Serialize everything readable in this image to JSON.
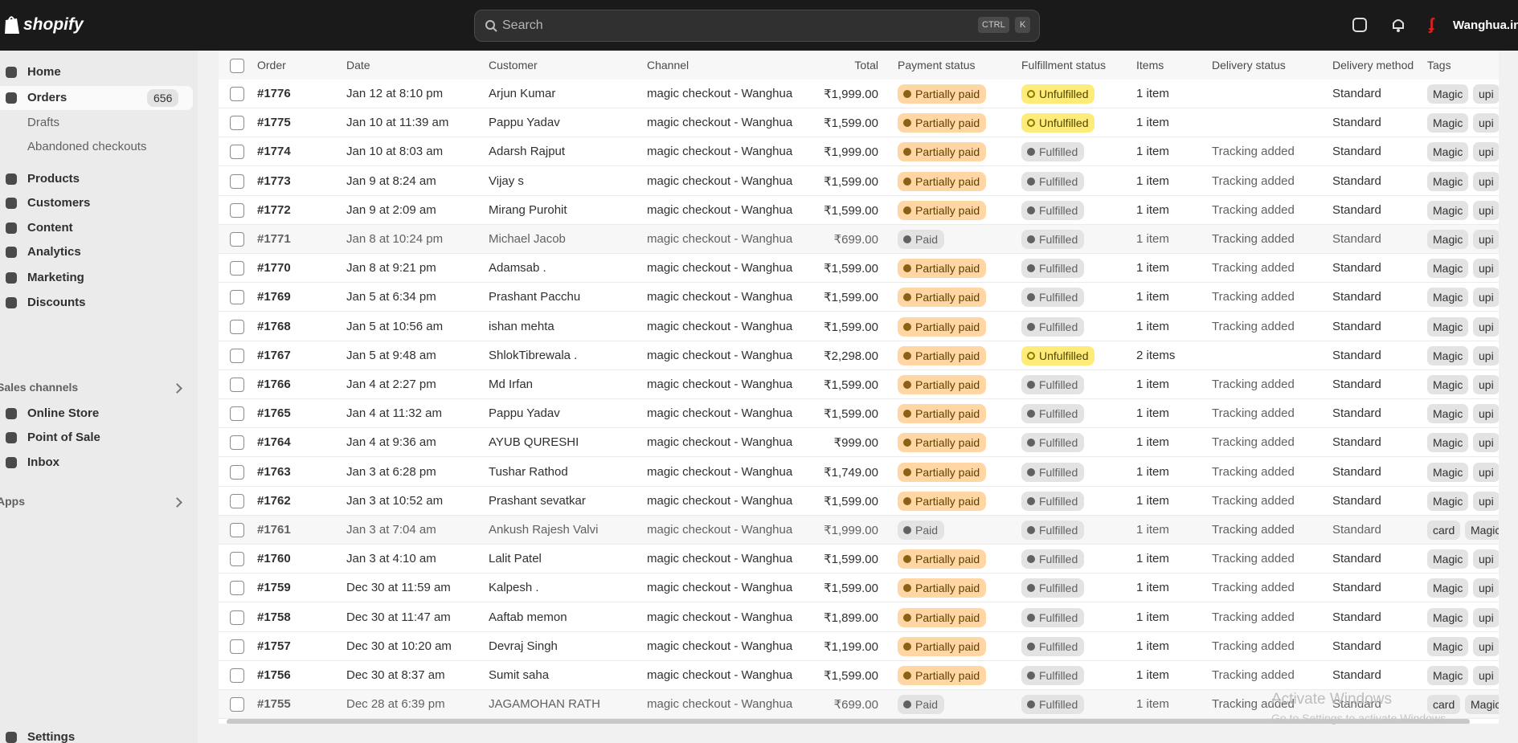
{
  "topbar": {
    "brand": "shopify",
    "search": "Search",
    "shortcut": [
      "CTRL",
      "K"
    ],
    "store": "Wanghua.in"
  },
  "sidebar": {
    "items": [
      {
        "label": "Home"
      },
      {
        "label": "Orders",
        "badge": 656,
        "children": [
          "Drafts",
          "Abandoned checkouts"
        ]
      },
      {
        "label": "Products"
      },
      {
        "label": "Customers"
      },
      {
        "label": "Content"
      },
      {
        "label": "Analytics"
      },
      {
        "label": "Marketing"
      },
      {
        "label": "Discounts"
      }
    ],
    "sales_channels": {
      "label": "Sales channels",
      "items": [
        "Online Store",
        "Point of Sale",
        "Inbox"
      ]
    },
    "apps": "Apps",
    "settings": "Settings"
  },
  "table": {
    "columns": [
      "Order",
      "Date",
      "Customer",
      "Channel",
      "Total",
      "Payment status",
      "Fulfillment status",
      "Items",
      "Delivery status",
      "Delivery method",
      "Tags"
    ],
    "rows": [
      {
        "order": "#1776",
        "date": "Jan 12 at 8:10 pm",
        "customer": "Arjun Kumar",
        "channel": "magic checkout - Wanghua",
        "total": "₹1,999.00",
        "payment": {
          "label": "Partially paid",
          "tone": "attention"
        },
        "fulfillment": {
          "label": "Unfulfilled",
          "tone": "warning"
        },
        "items": "1 item",
        "method": "Standard",
        "tags": [
          "Magic",
          "upi"
        ]
      },
      {
        "order": "#1775",
        "date": "Jan 10 at 11:39 am",
        "customer": "Pappu Yadav",
        "channel": "magic checkout - Wanghua",
        "total": "₹1,599.00",
        "payment": {
          "label": "Partially paid",
          "tone": "attention"
        },
        "fulfillment": {
          "label": "Unfulfilled",
          "tone": "warning"
        },
        "items": "1 item",
        "method": "Standard",
        "tags": [
          "Magic",
          "upi"
        ]
      },
      {
        "order": "#1774",
        "date": "Jan 10 at 8:03 am",
        "customer": "Adarsh Rajput",
        "channel": "magic checkout - Wanghua",
        "total": "₹1,999.00",
        "payment": {
          "label": "Partially paid",
          "tone": "attention"
        },
        "fulfillment": {
          "label": "Fulfilled",
          "tone": "neutral"
        },
        "items": "1 item",
        "delivery": "Tracking added",
        "method": "Standard",
        "tags": [
          "Magic",
          "upi"
        ]
      },
      {
        "order": "#1773",
        "date": "Jan 9 at 8:24 am",
        "customer": "Vijay s",
        "channel": "magic checkout - Wanghua",
        "total": "₹1,599.00",
        "payment": {
          "label": "Partially paid",
          "tone": "attention"
        },
        "fulfillment": {
          "label": "Fulfilled",
          "tone": "neutral"
        },
        "items": "1 item",
        "delivery": "Tracking added",
        "method": "Standard",
        "tags": [
          "Magic",
          "upi"
        ]
      },
      {
        "order": "#1772",
        "date": "Jan 9 at 2:09 am",
        "customer": "Mirang Purohit",
        "channel": "magic checkout - Wanghua",
        "total": "₹1,599.00",
        "payment": {
          "label": "Partially paid",
          "tone": "attention"
        },
        "fulfillment": {
          "label": "Fulfilled",
          "tone": "neutral"
        },
        "items": "1 item",
        "delivery": "Tracking added",
        "method": "Standard",
        "tags": [
          "Magic",
          "upi"
        ]
      },
      {
        "order": "#1771",
        "date": "Jan 8 at 10:24 pm",
        "customer": "Michael Jacob",
        "channel": "magic checkout - Wanghua",
        "total": "₹699.00",
        "payment": {
          "label": "Paid",
          "tone": "neutral"
        },
        "fulfillment": {
          "label": "Fulfilled",
          "tone": "neutral"
        },
        "items": "1 item",
        "delivery": "Tracking added",
        "method": "Standard",
        "tags": [
          "Magic",
          "upi"
        ]
      },
      {
        "order": "#1770",
        "date": "Jan 8 at 9:21 pm",
        "customer": "Adamsab .",
        "channel": "magic checkout - Wanghua",
        "total": "₹1,599.00",
        "payment": {
          "label": "Partially paid",
          "tone": "attention"
        },
        "fulfillment": {
          "label": "Fulfilled",
          "tone": "neutral"
        },
        "items": "1 item",
        "delivery": "Tracking added",
        "method": "Standard",
        "tags": [
          "Magic",
          "upi"
        ]
      },
      {
        "order": "#1769",
        "date": "Jan 5 at 6:34 pm",
        "customer": "Prashant Pacchu",
        "channel": "magic checkout - Wanghua",
        "total": "₹1,599.00",
        "payment": {
          "label": "Partially paid",
          "tone": "attention"
        },
        "fulfillment": {
          "label": "Fulfilled",
          "tone": "neutral"
        },
        "items": "1 item",
        "delivery": "Tracking added",
        "method": "Standard",
        "tags": [
          "Magic",
          "upi"
        ]
      },
      {
        "order": "#1768",
        "date": "Jan 5 at 10:56 am",
        "customer": "ishan mehta",
        "channel": "magic checkout - Wanghua",
        "total": "₹1,599.00",
        "payment": {
          "label": "Partially paid",
          "tone": "attention"
        },
        "fulfillment": {
          "label": "Fulfilled",
          "tone": "neutral"
        },
        "items": "1 item",
        "delivery": "Tracking added",
        "method": "Standard",
        "tags": [
          "Magic",
          "upi"
        ]
      },
      {
        "order": "#1767",
        "date": "Jan 5 at 9:48 am",
        "customer": "ShlokTibrewala .",
        "channel": "magic checkout - Wanghua",
        "total": "₹2,298.00",
        "payment": {
          "label": "Partially paid",
          "tone": "attention"
        },
        "fulfillment": {
          "label": "Unfulfilled",
          "tone": "warning"
        },
        "items": "2 items",
        "method": "Standard",
        "tags": [
          "Magic",
          "upi"
        ]
      },
      {
        "order": "#1766",
        "date": "Jan 4 at 2:27 pm",
        "customer": "Md Irfan",
        "channel": "magic checkout - Wanghua",
        "total": "₹1,599.00",
        "payment": {
          "label": "Partially paid",
          "tone": "attention"
        },
        "fulfillment": {
          "label": "Fulfilled",
          "tone": "neutral"
        },
        "items": "1 item",
        "delivery": "Tracking added",
        "method": "Standard",
        "tags": [
          "Magic",
          "upi"
        ]
      },
      {
        "order": "#1765",
        "date": "Jan 4 at 11:32 am",
        "customer": "Pappu Yadav",
        "channel": "magic checkout - Wanghua",
        "total": "₹1,599.00",
        "payment": {
          "label": "Partially paid",
          "tone": "attention"
        },
        "fulfillment": {
          "label": "Fulfilled",
          "tone": "neutral"
        },
        "items": "1 item",
        "delivery": "Tracking added",
        "method": "Standard",
        "tags": [
          "Magic",
          "upi"
        ]
      },
      {
        "order": "#1764",
        "date": "Jan 4 at 9:36 am",
        "customer": "AYUB QURESHI",
        "channel": "magic checkout - Wanghua",
        "total": "₹999.00",
        "payment": {
          "label": "Partially paid",
          "tone": "attention"
        },
        "fulfillment": {
          "label": "Fulfilled",
          "tone": "neutral"
        },
        "items": "1 item",
        "delivery": "Tracking added",
        "method": "Standard",
        "tags": [
          "Magic",
          "upi"
        ]
      },
      {
        "order": "#1763",
        "date": "Jan 3 at 6:28 pm",
        "customer": "Tushar Rathod",
        "channel": "magic checkout - Wanghua",
        "total": "₹1,749.00",
        "payment": {
          "label": "Partially paid",
          "tone": "attention"
        },
        "fulfillment": {
          "label": "Fulfilled",
          "tone": "neutral"
        },
        "items": "1 item",
        "delivery": "Tracking added",
        "method": "Standard",
        "tags": [
          "Magic",
          "upi"
        ]
      },
      {
        "order": "#1762",
        "date": "Jan 3 at 10:52 am",
        "customer": "Prashant sevatkar",
        "channel": "magic checkout - Wanghua",
        "total": "₹1,599.00",
        "payment": {
          "label": "Partially paid",
          "tone": "attention"
        },
        "fulfillment": {
          "label": "Fulfilled",
          "tone": "neutral"
        },
        "items": "1 item",
        "delivery": "Tracking added",
        "method": "Standard",
        "tags": [
          "Magic",
          "upi"
        ]
      },
      {
        "order": "#1761",
        "date": "Jan 3 at 7:04 am",
        "customer": "Ankush Rajesh Valvi",
        "channel": "magic checkout - Wanghua",
        "total": "₹1,999.00",
        "payment": {
          "label": "Paid",
          "tone": "neutral"
        },
        "fulfillment": {
          "label": "Fulfilled",
          "tone": "neutral"
        },
        "items": "1 item",
        "delivery": "Tracking added",
        "method": "Standard",
        "tags": [
          "card",
          "Magic"
        ]
      },
      {
        "order": "#1760",
        "date": "Jan 3 at 4:10 am",
        "customer": "Lalit Patel",
        "channel": "magic checkout - Wanghua",
        "total": "₹1,599.00",
        "payment": {
          "label": "Partially paid",
          "tone": "attention"
        },
        "fulfillment": {
          "label": "Fulfilled",
          "tone": "neutral"
        },
        "items": "1 item",
        "delivery": "Tracking added",
        "method": "Standard",
        "tags": [
          "Magic",
          "upi"
        ]
      },
      {
        "order": "#1759",
        "date": "Dec 30 at 11:59 am",
        "customer": "Kalpesh .",
        "channel": "magic checkout - Wanghua",
        "total": "₹1,599.00",
        "payment": {
          "label": "Partially paid",
          "tone": "attention"
        },
        "fulfillment": {
          "label": "Fulfilled",
          "tone": "neutral"
        },
        "items": "1 item",
        "delivery": "Tracking added",
        "method": "Standard",
        "tags": [
          "Magic",
          "upi"
        ]
      },
      {
        "order": "#1758",
        "date": "Dec 30 at 11:47 am",
        "customer": "Aaftab memon",
        "channel": "magic checkout - Wanghua",
        "total": "₹1,899.00",
        "payment": {
          "label": "Partially paid",
          "tone": "attention"
        },
        "fulfillment": {
          "label": "Fulfilled",
          "tone": "neutral"
        },
        "items": "1 item",
        "delivery": "Tracking added",
        "method": "Standard",
        "tags": [
          "Magic",
          "upi"
        ]
      },
      {
        "order": "#1757",
        "date": "Dec 30 at 10:20 am",
        "customer": "Devraj Singh",
        "channel": "magic checkout - Wanghua",
        "total": "₹1,199.00",
        "payment": {
          "label": "Partially paid",
          "tone": "attention"
        },
        "fulfillment": {
          "label": "Fulfilled",
          "tone": "neutral"
        },
        "items": "1 item",
        "delivery": "Tracking added",
        "method": "Standard",
        "tags": [
          "Magic",
          "upi"
        ]
      },
      {
        "order": "#1756",
        "date": "Dec 30 at 8:37 am",
        "customer": "Sumit saha",
        "channel": "magic checkout - Wanghua",
        "total": "₹1,599.00",
        "payment": {
          "label": "Partially paid",
          "tone": "attention"
        },
        "fulfillment": {
          "label": "Fulfilled",
          "tone": "neutral"
        },
        "items": "1 item",
        "delivery": "Tracking added",
        "method": "Standard",
        "tags": [
          "Magic",
          "upi"
        ]
      },
      {
        "order": "#1755",
        "date": "Dec 28 at 6:39 pm",
        "customer": "JAGAMOHAN RATH",
        "channel": "magic checkout - Wanghua",
        "total": "₹699.00",
        "payment": {
          "label": "Paid",
          "tone": "neutral"
        },
        "fulfillment": {
          "label": "Fulfilled",
          "tone": "neutral"
        },
        "items": "1 item",
        "delivery": "Tracking added",
        "method": "Standard",
        "tags": [
          "card",
          "Magic"
        ]
      }
    ]
  },
  "watermark": {
    "title": "Activate Windows",
    "subtitle": "Go to Settings to activate Windows."
  }
}
